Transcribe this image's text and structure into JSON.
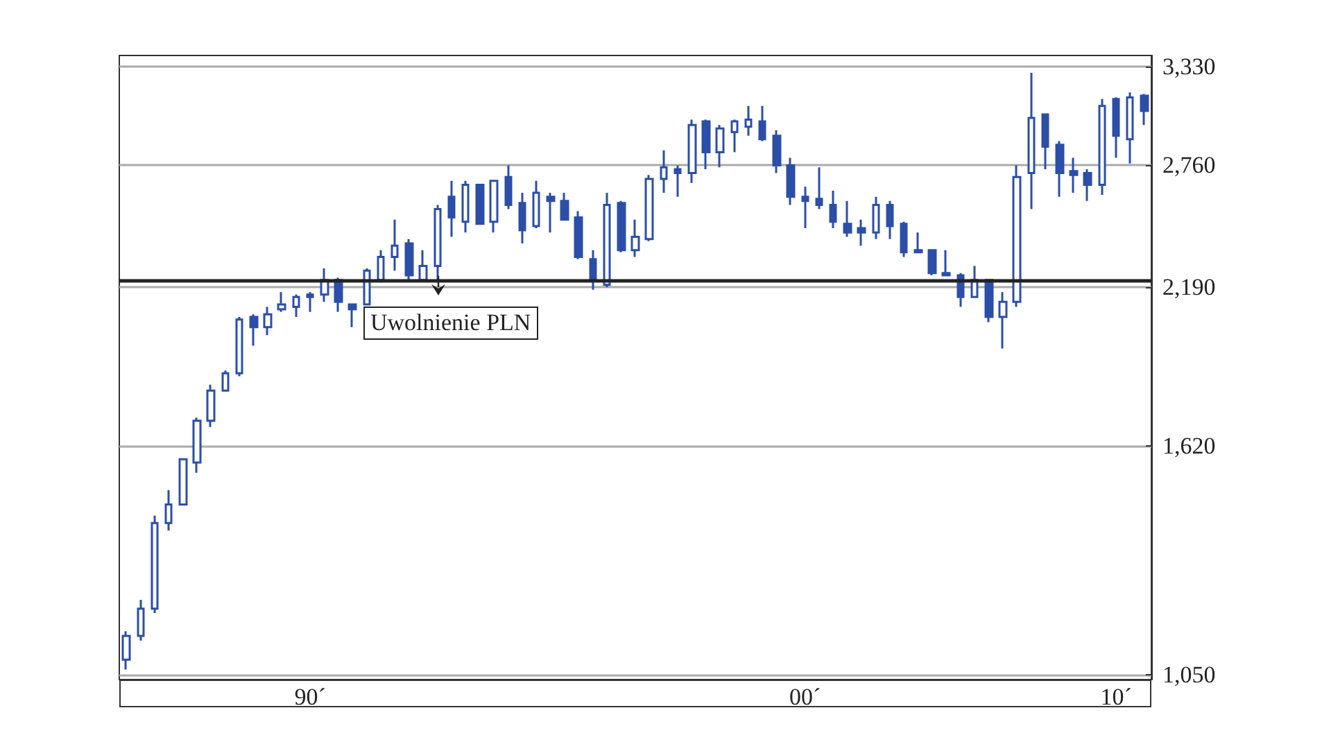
{
  "chart_data": {
    "type": "candlestick",
    "categories": [
      null,
      null,
      null,
      null,
      null,
      null,
      null,
      null,
      null,
      null,
      null,
      null,
      null,
      "90´",
      null,
      null,
      null,
      null,
      null,
      null,
      null,
      null,
      null,
      null,
      null,
      null,
      null,
      null,
      null,
      null,
      null,
      null,
      null,
      null,
      null,
      null,
      null,
      null,
      null,
      null,
      null,
      null,
      null,
      null,
      null,
      null,
      null,
      null,
      "00´",
      null,
      null,
      null,
      null,
      null,
      null,
      null,
      null,
      null,
      null,
      null,
      null,
      null,
      null,
      null,
      null,
      null,
      null,
      null,
      null,
      null,
      "10´",
      null,
      null
    ],
    "color": "#2b4ea8",
    "ohlc": [
      [
        1080,
        1140,
        1060,
        1130
      ],
      [
        1130,
        1210,
        1120,
        1190
      ],
      [
        1190,
        1420,
        1180,
        1400
      ],
      [
        1400,
        1490,
        1380,
        1450
      ],
      [
        1450,
        1580,
        1450,
        1580
      ],
      [
        1570,
        1710,
        1540,
        1700
      ],
      [
        1700,
        1820,
        1680,
        1800
      ],
      [
        1800,
        1870,
        1800,
        1860
      ],
      [
        1860,
        2070,
        1850,
        2060
      ],
      [
        2070,
        2080,
        1960,
        2030
      ],
      [
        2030,
        2110,
        2000,
        2080
      ],
      [
        2100,
        2170,
        2090,
        2120
      ],
      [
        2110,
        2160,
        2070,
        2150
      ],
      [
        2160,
        2170,
        2090,
        2150
      ],
      [
        2160,
        2270,
        2130,
        2220
      ],
      [
        2220,
        2230,
        2090,
        2130
      ],
      [
        2120,
        2120,
        2030,
        2100
      ],
      [
        2120,
        2270,
        2120,
        2260
      ],
      [
        2220,
        2350,
        2210,
        2320
      ],
      [
        2320,
        2490,
        2260,
        2370
      ],
      [
        2380,
        2400,
        2220,
        2240
      ],
      [
        2220,
        2350,
        2220,
        2280
      ],
      [
        2280,
        2560,
        2220,
        2540
      ],
      [
        2600,
        2680,
        2410,
        2500
      ],
      [
        2480,
        2680,
        2430,
        2660
      ],
      [
        2660,
        2660,
        2470,
        2470
      ],
      [
        2480,
        2680,
        2430,
        2680
      ],
      [
        2700,
        2760,
        2540,
        2560
      ],
      [
        2570,
        2620,
        2380,
        2440
      ],
      [
        2460,
        2680,
        2450,
        2620
      ],
      [
        2600,
        2620,
        2430,
        2580
      ],
      [
        2580,
        2620,
        2490,
        2490
      ],
      [
        2500,
        2530,
        2310,
        2320
      ],
      [
        2310,
        2350,
        2180,
        2220
      ],
      [
        2200,
        2620,
        2190,
        2560
      ],
      [
        2570,
        2580,
        2340,
        2350
      ],
      [
        2350,
        2490,
        2320,
        2410
      ],
      [
        2400,
        2710,
        2390,
        2690
      ],
      [
        2690,
        2840,
        2620,
        2750
      ],
      [
        2740,
        2760,
        2600,
        2720
      ],
      [
        2720,
        3010,
        2670,
        2980
      ],
      [
        3000,
        3010,
        2740,
        2830
      ],
      [
        2830,
        2980,
        2750,
        2960
      ],
      [
        2940,
        3010,
        2830,
        3000
      ],
      [
        2970,
        3090,
        2920,
        3010
      ],
      [
        3000,
        3090,
        2890,
        2900
      ],
      [
        2920,
        2950,
        2720,
        2760
      ],
      [
        2760,
        2800,
        2560,
        2600
      ],
      [
        2600,
        2650,
        2450,
        2580
      ],
      [
        2590,
        2750,
        2540,
        2560
      ],
      [
        2560,
        2630,
        2450,
        2480
      ],
      [
        2470,
        2580,
        2410,
        2430
      ],
      [
        2450,
        2490,
        2370,
        2430
      ],
      [
        2430,
        2600,
        2400,
        2560
      ],
      [
        2560,
        2580,
        2400,
        2460
      ],
      [
        2470,
        2480,
        2320,
        2340
      ],
      [
        2350,
        2430,
        2340,
        2340
      ],
      [
        2350,
        2350,
        2240,
        2250
      ],
      [
        2250,
        2350,
        2240,
        2240
      ],
      [
        2240,
        2250,
        2110,
        2150
      ],
      [
        2150,
        2280,
        2150,
        2220
      ],
      [
        2220,
        2220,
        2050,
        2070
      ],
      [
        2070,
        2170,
        1950,
        2130
      ],
      [
        2130,
        2760,
        2110,
        2700
      ],
      [
        2720,
        3290,
        2540,
        3020
      ],
      [
        3040,
        3040,
        2740,
        2860
      ],
      [
        2870,
        2890,
        2600,
        2720
      ],
      [
        2730,
        2800,
        2620,
        2710
      ],
      [
        2720,
        2740,
        2580,
        2660
      ],
      [
        2660,
        3130,
        2610,
        3090
      ],
      [
        3130,
        3140,
        2800,
        2920
      ],
      [
        2900,
        3170,
        2770,
        3140
      ],
      [
        3150,
        3160,
        2980,
        3060
      ]
    ],
    "ylim": [
      1040,
      3400
    ],
    "yticks": [
      {
        "value": 1050,
        "label": "1,050"
      },
      {
        "value": 1620,
        "label": "1,620"
      },
      {
        "value": 2190,
        "label": "2,190"
      },
      {
        "value": 2760,
        "label": "2,760"
      },
      {
        "value": 3330,
        "label": "3,330"
      }
    ],
    "log": true,
    "grid": "y",
    "ref_lines": [
      {
        "axis": "y",
        "value": 2220,
        "color": "#222222"
      }
    ],
    "annotations": [
      "Uwolnienie PLN"
    ]
  }
}
